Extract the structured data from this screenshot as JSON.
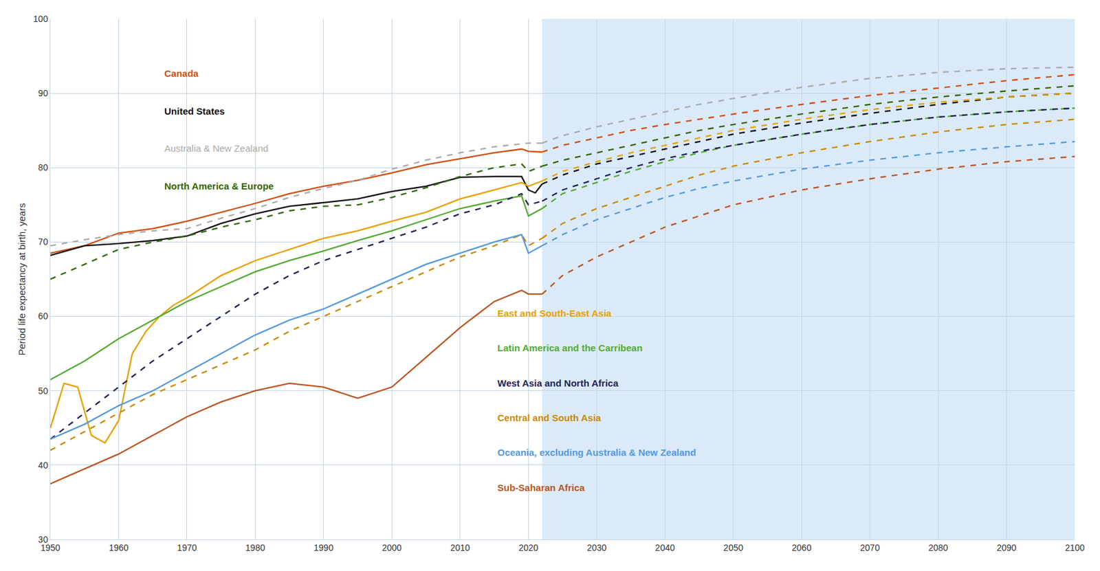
{
  "chart_data": {
    "type": "line",
    "ylabel": "Period life expectancy at birth, years",
    "xlim": [
      1950,
      2100
    ],
    "ylim": [
      30,
      100
    ],
    "xticks": [
      1950,
      1960,
      1970,
      1980,
      1990,
      2000,
      2010,
      2020,
      2030,
      2040,
      2050,
      2060,
      2070,
      2080,
      2090,
      2100
    ],
    "yticks": [
      30,
      40,
      50,
      60,
      70,
      80,
      90,
      100
    ],
    "grid": true,
    "forecast_start": 2022,
    "forecast_color": "#daeaf8",
    "series": [
      {
        "name": "Canada",
        "color": "#d05010",
        "line_style": "solid",
        "x": [
          1950,
          1955,
          1960,
          1965,
          1970,
          1975,
          1980,
          1985,
          1990,
          1995,
          2000,
          2005,
          2010,
          2015,
          2019,
          2020,
          2022
        ],
        "values": [
          68.5,
          69.5,
          71.2,
          71.8,
          72.8,
          74.0,
          75.2,
          76.5,
          77.5,
          78.3,
          79.3,
          80.4,
          81.2,
          82.0,
          82.5,
          82.2,
          82.1
        ],
        "projection": {
          "line_style": "dashed",
          "x": [
            2022,
            2025,
            2030,
            2035,
            2040,
            2045,
            2050,
            2060,
            2070,
            2080,
            2090,
            2100
          ],
          "values": [
            82.1,
            83.0,
            84.0,
            85.0,
            85.8,
            86.5,
            87.2,
            88.5,
            89.7,
            90.7,
            91.7,
            92.5
          ]
        }
      },
      {
        "name": "United States",
        "color": "#111111",
        "line_style": "solid",
        "x": [
          1950,
          1955,
          1960,
          1965,
          1970,
          1975,
          1980,
          1985,
          1990,
          1995,
          2000,
          2005,
          2010,
          2015,
          2019,
          2020,
          2021,
          2022
        ],
        "values": [
          68.2,
          69.5,
          69.8,
          70.2,
          70.8,
          72.5,
          73.8,
          74.8,
          75.3,
          75.8,
          76.8,
          77.5,
          78.7,
          78.8,
          78.8,
          77.0,
          76.6,
          77.8
        ],
        "projection": {
          "line_style": "dashed",
          "x": [
            2022,
            2025,
            2030,
            2035,
            2040,
            2045,
            2050,
            2060,
            2070,
            2080,
            2090,
            2100
          ],
          "values": [
            77.8,
            79.0,
            80.5,
            81.5,
            82.5,
            83.5,
            84.5,
            86.0,
            87.3,
            88.5,
            89.5,
            90.0
          ]
        }
      },
      {
        "name": "Australia & New Zealand",
        "color": "#aaaaaa",
        "line_style": "dashed",
        "x": [
          1950,
          1955,
          1960,
          1965,
          1970,
          1975,
          1980,
          1985,
          1990,
          1995,
          2000,
          2005,
          2010,
          2015,
          2019,
          2020,
          2022
        ],
        "values": [
          69.5,
          70.3,
          71.0,
          71.5,
          71.8,
          73.2,
          74.5,
          76.0,
          77.2,
          78.3,
          79.8,
          81.0,
          82.0,
          82.8,
          83.2,
          83.3,
          83.3
        ],
        "projection": {
          "line_style": "dashed",
          "x": [
            2022,
            2025,
            2030,
            2035,
            2040,
            2045,
            2050,
            2060,
            2070,
            2080,
            2090,
            2100
          ],
          "values": [
            83.3,
            84.3,
            85.5,
            86.5,
            87.5,
            88.5,
            89.3,
            90.8,
            92.0,
            92.8,
            93.3,
            93.5
          ]
        }
      },
      {
        "name": "North America & Europe",
        "color": "#336600",
        "line_style": "dashed",
        "x": [
          1950,
          1955,
          1960,
          1965,
          1970,
          1975,
          1980,
          1985,
          1990,
          1995,
          2000,
          2005,
          2010,
          2015,
          2019,
          2020,
          2022
        ],
        "values": [
          65.0,
          67.0,
          69.0,
          70.0,
          70.8,
          72.0,
          73.0,
          74.2,
          74.8,
          75.0,
          76.0,
          77.3,
          78.8,
          80.0,
          80.5,
          79.5,
          80.2
        ],
        "projection": {
          "line_style": "dashed",
          "x": [
            2022,
            2025,
            2030,
            2035,
            2040,
            2045,
            2050,
            2060,
            2070,
            2080,
            2090,
            2100
          ],
          "values": [
            80.2,
            81.0,
            82.0,
            83.0,
            84.0,
            85.0,
            85.8,
            87.2,
            88.5,
            89.5,
            90.3,
            91.0
          ]
        }
      },
      {
        "name": "East and South-East Asia",
        "color": "#e8a000",
        "line_style": "solid",
        "x": [
          1950,
          1952,
          1954,
          1956,
          1958,
          1960,
          1962,
          1964,
          1966,
          1968,
          1970,
          1975,
          1980,
          1985,
          1990,
          1995,
          2000,
          2005,
          2010,
          2015,
          2019,
          2020,
          2022
        ],
        "values": [
          45.0,
          51.0,
          50.5,
          44.0,
          43.0,
          46.0,
          55.0,
          58.0,
          60.0,
          61.5,
          62.5,
          65.5,
          67.5,
          69.0,
          70.5,
          71.5,
          72.8,
          74.0,
          75.8,
          77.0,
          78.0,
          77.5,
          78.2
        ],
        "projection": {
          "line_style": "dashed",
          "x": [
            2022,
            2025,
            2030,
            2035,
            2040,
            2045,
            2050,
            2060,
            2070,
            2080,
            2090,
            2100
          ],
          "values": [
            78.2,
            79.5,
            80.8,
            82.0,
            83.0,
            84.0,
            85.0,
            86.5,
            87.8,
            88.8,
            89.5,
            90.0
          ]
        }
      },
      {
        "name": "Latin America and the Carribean",
        "color": "#55aa33",
        "line_style": "solid",
        "x": [
          1950,
          1955,
          1960,
          1965,
          1970,
          1975,
          1980,
          1985,
          1990,
          1995,
          2000,
          2005,
          2010,
          2015,
          2019,
          2020,
          2022
        ],
        "values": [
          51.5,
          54.0,
          57.0,
          59.5,
          62.0,
          64.0,
          66.0,
          67.5,
          68.8,
          70.2,
          71.5,
          73.0,
          74.5,
          75.5,
          76.2,
          73.5,
          74.5
        ],
        "projection": {
          "line_style": "dashed",
          "x": [
            2022,
            2025,
            2030,
            2035,
            2040,
            2045,
            2050,
            2060,
            2070,
            2080,
            2090,
            2100
          ],
          "values": [
            74.5,
            76.5,
            78.0,
            79.5,
            80.8,
            82.0,
            83.0,
            84.5,
            85.8,
            86.8,
            87.5,
            88.0
          ]
        }
      },
      {
        "name": "West Asia and North Africa",
        "color": "#222255",
        "line_style": "dashed",
        "x": [
          1950,
          1955,
          1960,
          1965,
          1970,
          1975,
          1980,
          1985,
          1990,
          1995,
          2000,
          2005,
          2010,
          2015,
          2019,
          2020,
          2022
        ],
        "values": [
          43.5,
          47.0,
          50.5,
          54.0,
          57.0,
          60.0,
          63.0,
          65.5,
          67.5,
          69.0,
          70.5,
          72.0,
          73.8,
          75.0,
          76.5,
          75.0,
          75.5
        ],
        "projection": {
          "line_style": "dashed",
          "x": [
            2022,
            2025,
            2030,
            2035,
            2040,
            2045,
            2050,
            2060,
            2070,
            2080,
            2090,
            2100
          ],
          "values": [
            75.5,
            77.0,
            78.5,
            80.0,
            81.2,
            82.2,
            83.0,
            84.5,
            85.8,
            86.8,
            87.5,
            88.0
          ]
        }
      },
      {
        "name": "Central and South Asia",
        "color": "#cc8800",
        "line_style": "dashed",
        "x": [
          1950,
          1955,
          1960,
          1965,
          1970,
          1975,
          1980,
          1985,
          1990,
          1995,
          2000,
          2005,
          2010,
          2015,
          2019,
          2020,
          2022
        ],
        "values": [
          42.0,
          44.5,
          47.0,
          49.5,
          51.5,
          53.5,
          55.5,
          58.0,
          60.0,
          62.0,
          64.0,
          66.0,
          68.0,
          69.5,
          71.0,
          69.5,
          70.5
        ],
        "projection": {
          "line_style": "dashed",
          "x": [
            2022,
            2025,
            2030,
            2035,
            2040,
            2045,
            2050,
            2060,
            2070,
            2080,
            2090,
            2100
          ],
          "values": [
            70.5,
            72.5,
            74.5,
            76.0,
            77.5,
            79.0,
            80.2,
            82.0,
            83.5,
            84.8,
            85.8,
            86.5
          ]
        }
      },
      {
        "name": "Oceania, excluding Australia & New Zealand",
        "color": "#5599dd",
        "line_style": "solid",
        "x": [
          1950,
          1955,
          1960,
          1965,
          1970,
          1975,
          1980,
          1985,
          1990,
          1995,
          2000,
          2005,
          2010,
          2015,
          2019,
          2020,
          2022
        ],
        "values": [
          43.5,
          45.5,
          48.0,
          50.0,
          52.5,
          55.0,
          57.5,
          59.5,
          61.0,
          63.0,
          65.0,
          67.0,
          68.5,
          70.0,
          71.0,
          68.5,
          69.5
        ],
        "projection": {
          "line_style": "dashed",
          "x": [
            2022,
            2025,
            2030,
            2035,
            2040,
            2045,
            2050,
            2060,
            2070,
            2080,
            2090,
            2100
          ],
          "values": [
            69.5,
            71.0,
            73.0,
            74.5,
            76.0,
            77.2,
            78.2,
            79.8,
            81.0,
            82.0,
            82.8,
            83.5
          ]
        }
      },
      {
        "name": "Sub-Saharan Africa",
        "color": "#bb5522",
        "line_style": "solid",
        "x": [
          1950,
          1955,
          1960,
          1965,
          1970,
          1975,
          1980,
          1985,
          1990,
          1995,
          2000,
          2005,
          2010,
          2015,
          2019,
          2020,
          2022
        ],
        "values": [
          37.5,
          39.5,
          41.5,
          44.0,
          46.5,
          48.5,
          50.0,
          51.0,
          50.5,
          49.0,
          50.5,
          54.5,
          58.5,
          62.0,
          63.5,
          63.0,
          63.0
        ],
        "projection": {
          "line_style": "dashed",
          "x": [
            2022,
            2025,
            2030,
            2035,
            2040,
            2045,
            2050,
            2060,
            2070,
            2080,
            2090,
            2100
          ],
          "values": [
            63.0,
            65.5,
            68.0,
            70.0,
            72.0,
            73.5,
            75.0,
            77.0,
            78.5,
            79.8,
            80.8,
            81.5
          ]
        }
      }
    ],
    "annotations": [
      {
        "text": "Canada",
        "color": "#d05010",
        "bold": true,
        "position": "upper left"
      },
      {
        "text": "United States",
        "color": "#111111",
        "bold": true,
        "position": "upper left"
      },
      {
        "text": "Australia & New Zealand",
        "color": "#aaaaaa",
        "bold": false,
        "position": "upper left"
      },
      {
        "text": "North America & Europe",
        "color": "#336600",
        "bold": true,
        "position": "upper left"
      },
      {
        "text": "East and South-East Asia",
        "color": "#e8a000",
        "bold": true,
        "position": "lower right"
      },
      {
        "text": "Latin America and the Carribean",
        "color": "#55aa33",
        "bold": true,
        "position": "lower right"
      },
      {
        "text": "West Asia and North Africa",
        "color": "#222255",
        "bold": true,
        "position": "lower right"
      },
      {
        "text": "Central and South Asia",
        "color": "#cc8800",
        "bold": true,
        "position": "lower right"
      },
      {
        "text": "Oceania, excluding Australia & New Zealand",
        "color": "#5599dd",
        "bold": true,
        "position": "lower right"
      },
      {
        "text": "Sub-Saharan Africa",
        "color": "#bb5522",
        "bold": true,
        "position": "lower right"
      }
    ]
  }
}
